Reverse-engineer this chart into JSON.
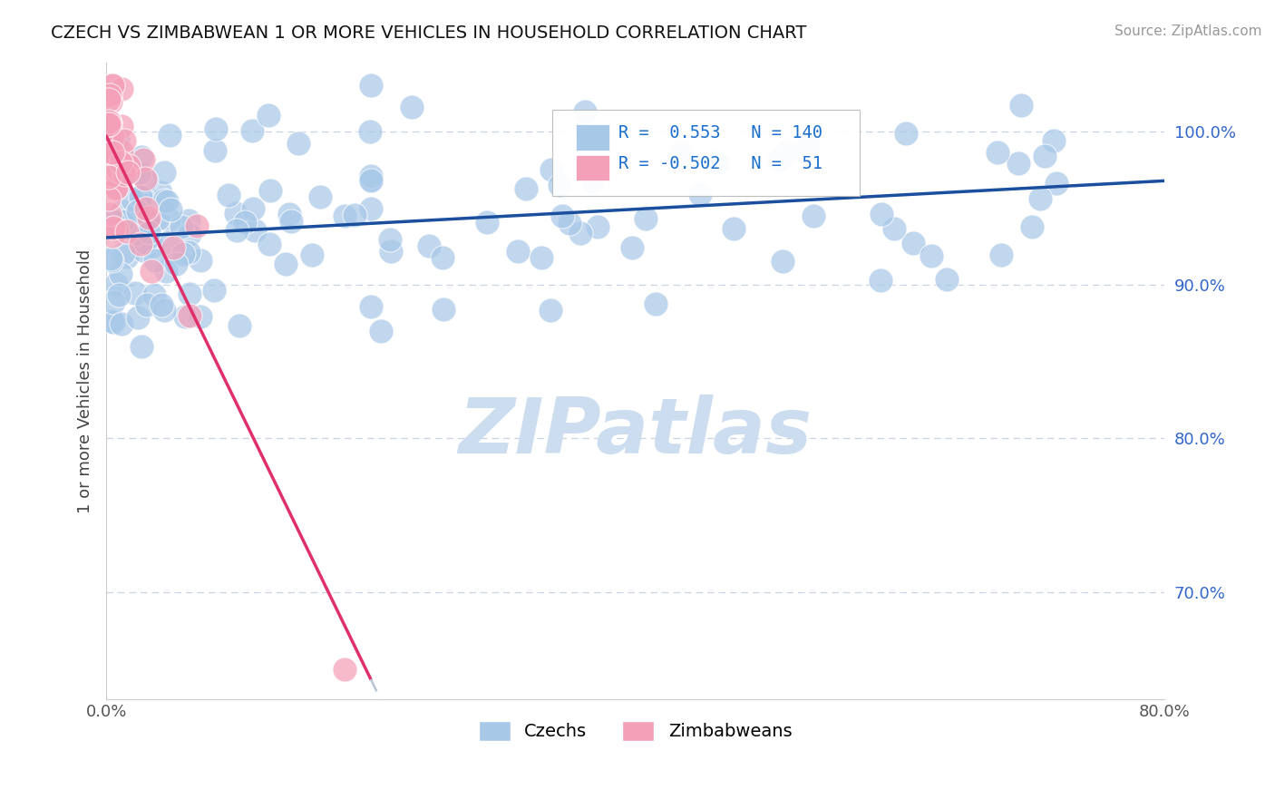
{
  "title": "CZECH VS ZIMBABWEAN 1 OR MORE VEHICLES IN HOUSEHOLD CORRELATION CHART",
  "source": "Source: ZipAtlas.com",
  "ylabel": "1 or more Vehicles in Household",
  "xlim": [
    0.0,
    80.0
  ],
  "ylim": [
    63.0,
    104.5
  ],
  "czech_R": 0.553,
  "czech_N": 140,
  "zim_R": -0.502,
  "zim_N": 51,
  "czech_color": "#a8c8e8",
  "czech_line_color": "#1a4f9e",
  "zim_color": "#f4a0b8",
  "zim_line_color": "#e0306a",
  "watermark_color": "#ccddf0",
  "legend_R_color": "#1a6fcc",
  "background_color": "#ffffff",
  "grid_color": "#c8d4e4",
  "ytick_vals": [
    70,
    80,
    90,
    100
  ],
  "ytick_labels": [
    "70.0%",
    "80.0%",
    "90.0%",
    "100.0%"
  ]
}
